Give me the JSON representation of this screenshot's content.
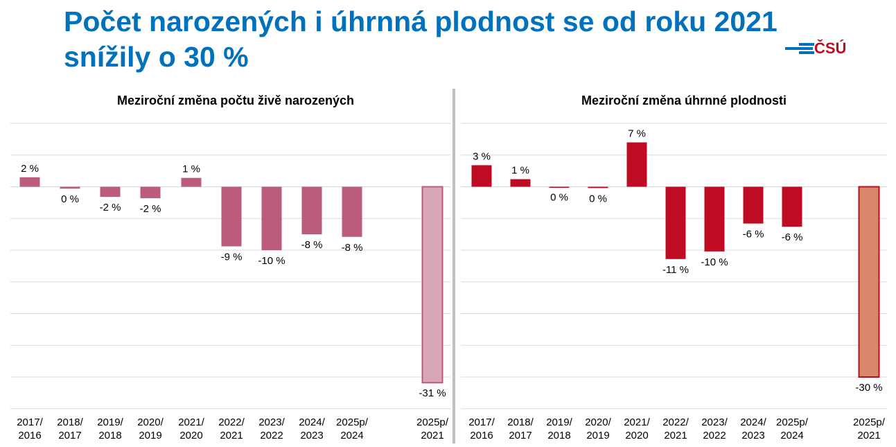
{
  "title": "Počet narozených i úhrnná plodnost se od roku 2021 snížily o 30 %",
  "logo_text": "ČSÚ",
  "colors": {
    "title": "#0071bc",
    "births": "#bd5b7f",
    "births_highlight": "#d9a6b7",
    "fertility": "#c00c22",
    "fertility_highlight": "#d9876b"
  },
  "chart_data": [
    {
      "type": "bar",
      "title": "Meziroční změna počtu živě narozených",
      "categories": [
        "2017/\n2016",
        "2018/\n2017",
        "2019/\n2018",
        "2020/\n2019",
        "2021/\n2020",
        "2022/\n2021",
        "2023/\n2022",
        "2024/\n2023",
        "2025p/\n2024",
        "2025p/\n2021"
      ],
      "values": [
        1.5,
        -0.3,
        -1.6,
        -1.8,
        1.4,
        -9.4,
        -10.0,
        -7.5,
        -7.9,
        -30.9
      ],
      "labels": [
        "2 %",
        "0 %",
        "-2 %",
        "-2 %",
        "1 %",
        "-9 %",
        "-10 %",
        "-8 %",
        "-8 %",
        "-31 %"
      ],
      "ylim": [
        -35,
        10
      ],
      "grid": true
    },
    {
      "type": "bar",
      "title": "Meziroční změna úhrnné plodnosti",
      "categories": [
        "2017/\n2016",
        "2018/\n2017",
        "2019/\n2018",
        "2020/\n2019",
        "2021/\n2020",
        "2022/\n2021",
        "2023/\n2022",
        "2024/\n2023",
        "2025p/\n2024",
        "2025p/\n2021"
      ],
      "values": [
        3.4,
        1.2,
        0,
        -0.2,
        7.0,
        -11.4,
        -10.2,
        -5.8,
        -6.3,
        -30.0
      ],
      "labels": [
        "3 %",
        "1 %",
        "0 %",
        "0 %",
        "7 %",
        "-11 %",
        "-10 %",
        "-6 %",
        "-6 %",
        "-30 %"
      ],
      "ylim": [
        -35,
        10
      ],
      "grid": true
    }
  ]
}
